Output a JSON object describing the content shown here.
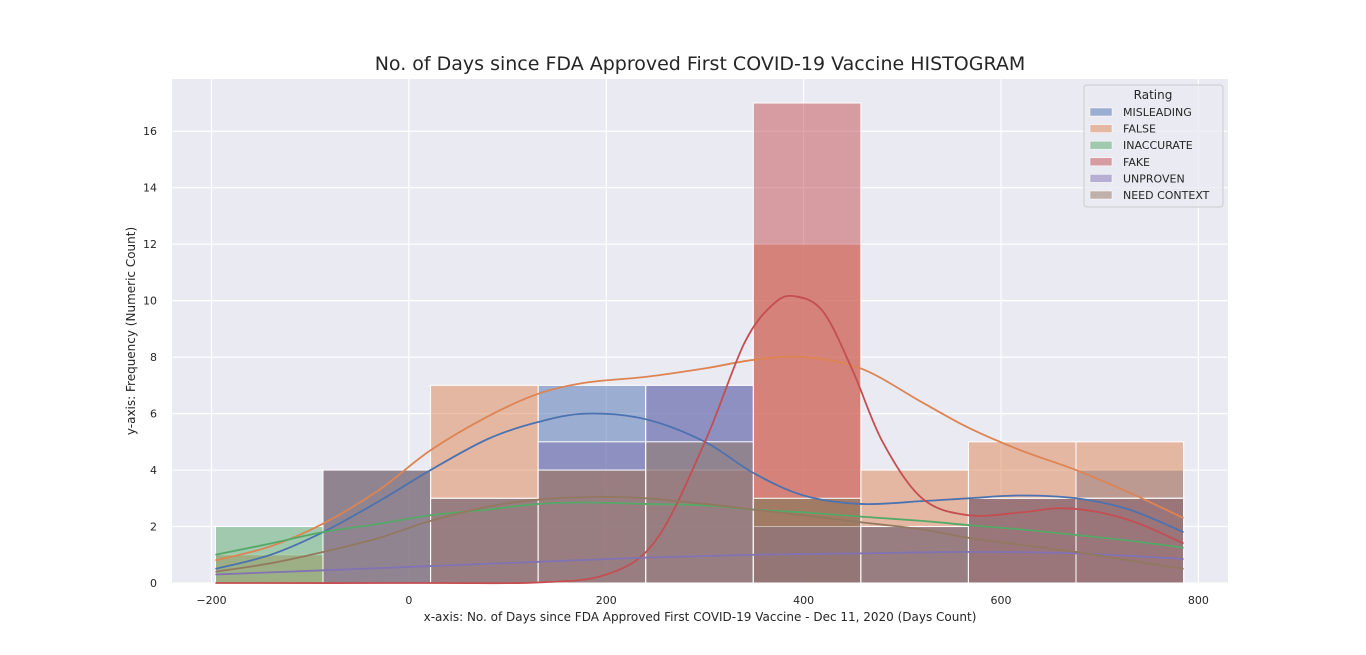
{
  "chart_data": {
    "type": "histogram",
    "title": "No. of Days since FDA Approved First COVID-19 Vaccine HISTOGRAM",
    "xlabel": "x-axis: No. of Days since FDA Approved First COVID-19 Vaccine - Dec 11, 2020 (Days Count)",
    "ylabel": "y-axis: Frequency (Numeric Count)",
    "xlim": [
      -240,
      830
    ],
    "ylim": [
      0,
      17.85
    ],
    "xticks": [
      -200,
      0,
      200,
      400,
      600,
      800
    ],
    "xtick_labels": [
      "−200",
      "0",
      "200",
      "400",
      "600",
      "800"
    ],
    "yticks": [
      0,
      2,
      4,
      6,
      8,
      10,
      12,
      14,
      16
    ],
    "grid": true,
    "background": "#eaeaf2",
    "bin_edges": [
      -196,
      -87,
      22,
      131,
      240,
      349,
      458,
      567,
      676,
      785
    ],
    "legend": {
      "title": "Rating",
      "position": "top-right"
    },
    "series": [
      {
        "name": "MISLEADING",
        "color": "#4c72b0",
        "values": [
          0,
          4,
          3,
          7,
          7,
          2,
          2,
          3,
          4
        ],
        "kde": [
          [
            -196,
            0.5
          ],
          [
            -140,
            1.0
          ],
          [
            -87,
            1.8
          ],
          [
            -30,
            2.9
          ],
          [
            22,
            4.0
          ],
          [
            80,
            5.1
          ],
          [
            131,
            5.7
          ],
          [
            180,
            6.0
          ],
          [
            240,
            5.8
          ],
          [
            300,
            5.0
          ],
          [
            349,
            3.9
          ],
          [
            400,
            3.1
          ],
          [
            458,
            2.8
          ],
          [
            520,
            2.9
          ],
          [
            567,
            3.0
          ],
          [
            620,
            3.1
          ],
          [
            676,
            3.0
          ],
          [
            730,
            2.6
          ],
          [
            785,
            1.8
          ]
        ]
      },
      {
        "name": "FALSE",
        "color": "#dd8452",
        "values": [
          1,
          0,
          7,
          4,
          4,
          12,
          4,
          5,
          5
        ],
        "kde": [
          [
            -196,
            0.8
          ],
          [
            -140,
            1.3
          ],
          [
            -87,
            2.1
          ],
          [
            -30,
            3.3
          ],
          [
            22,
            4.7
          ],
          [
            80,
            5.9
          ],
          [
            131,
            6.7
          ],
          [
            180,
            7.1
          ],
          [
            240,
            7.3
          ],
          [
            300,
            7.6
          ],
          [
            349,
            7.9
          ],
          [
            400,
            8.0
          ],
          [
            458,
            7.6
          ],
          [
            520,
            6.4
          ],
          [
            567,
            5.5
          ],
          [
            620,
            4.7
          ],
          [
            676,
            4.0
          ],
          [
            730,
            3.2
          ],
          [
            785,
            2.3
          ]
        ]
      },
      {
        "name": "INACCURATE",
        "color": "#55a868",
        "values": [
          2,
          0,
          0,
          0,
          0,
          3,
          0,
          0,
          0
        ],
        "kde": [
          [
            -196,
            1.0
          ],
          [
            -140,
            1.4
          ],
          [
            -87,
            1.8
          ],
          [
            -30,
            2.1
          ],
          [
            22,
            2.4
          ],
          [
            80,
            2.6
          ],
          [
            131,
            2.8
          ],
          [
            180,
            2.85
          ],
          [
            240,
            2.8
          ],
          [
            300,
            2.75
          ],
          [
            349,
            2.6
          ],
          [
            400,
            2.5
          ],
          [
            458,
            2.35
          ],
          [
            520,
            2.2
          ],
          [
            567,
            2.05
          ],
          [
            620,
            1.9
          ],
          [
            676,
            1.7
          ],
          [
            730,
            1.5
          ],
          [
            785,
            1.25
          ]
        ]
      },
      {
        "name": "FAKE",
        "color": "#c44e52",
        "values": [
          0,
          0,
          0,
          0,
          0,
          17,
          0,
          3,
          3
        ],
        "kde": [
          [
            -196,
            0
          ],
          [
            22,
            0
          ],
          [
            131,
            0.02
          ],
          [
            200,
            0.3
          ],
          [
            250,
            1.5
          ],
          [
            300,
            5.0
          ],
          [
            340,
            8.5
          ],
          [
            370,
            9.9
          ],
          [
            392,
            10.15
          ],
          [
            420,
            9.6
          ],
          [
            450,
            7.5
          ],
          [
            480,
            5.0
          ],
          [
            520,
            3.0
          ],
          [
            567,
            2.4
          ],
          [
            620,
            2.5
          ],
          [
            660,
            2.65
          ],
          [
            700,
            2.5
          ],
          [
            740,
            2.1
          ],
          [
            785,
            1.4
          ]
        ]
      },
      {
        "name": "UNPROVEN",
        "color": "#8172b3",
        "values": [
          0,
          4,
          3,
          5,
          7,
          2,
          2,
          3,
          3
        ],
        "kde": [
          [
            -196,
            0.3
          ],
          [
            -87,
            0.45
          ],
          [
            22,
            0.6
          ],
          [
            131,
            0.75
          ],
          [
            240,
            0.9
          ],
          [
            349,
            1.0
          ],
          [
            458,
            1.05
          ],
          [
            567,
            1.1
          ],
          [
            676,
            1.05
          ],
          [
            785,
            0.85
          ]
        ]
      },
      {
        "name": "NEED CONTEXT",
        "color": "#937860",
        "values": [
          0,
          4,
          3,
          4,
          5,
          3,
          2,
          3,
          3
        ],
        "kde": [
          [
            -196,
            0.4
          ],
          [
            -140,
            0.7
          ],
          [
            -87,
            1.1
          ],
          [
            -30,
            1.6
          ],
          [
            22,
            2.2
          ],
          [
            80,
            2.7
          ],
          [
            131,
            2.95
          ],
          [
            190,
            3.05
          ],
          [
            240,
            3.0
          ],
          [
            300,
            2.8
          ],
          [
            349,
            2.6
          ],
          [
            400,
            2.4
          ],
          [
            458,
            2.15
          ],
          [
            520,
            1.9
          ],
          [
            567,
            1.6
          ],
          [
            620,
            1.35
          ],
          [
            676,
            1.1
          ],
          [
            730,
            0.8
          ],
          [
            785,
            0.5
          ]
        ]
      }
    ]
  }
}
